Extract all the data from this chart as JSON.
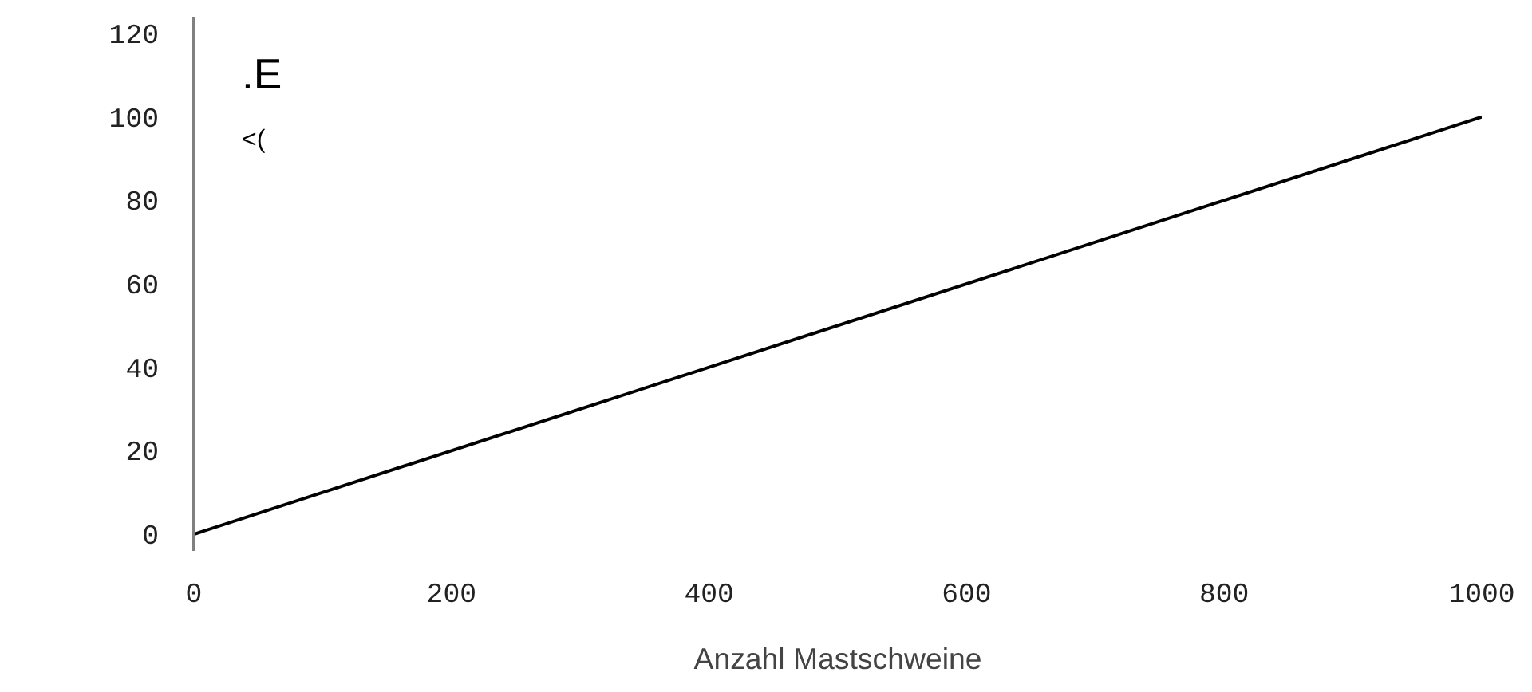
{
  "chart_data": {
    "type": "line",
    "xlabel": "Anzahl Mastschweine",
    "ylabel": ".E\n<(",
    "x": [
      0,
      1000
    ],
    "series": [
      {
        "color": "#000000",
        "values": [
          0,
          100
        ]
      }
    ],
    "xlim": [
      0,
      1000
    ],
    "xticks": [
      0,
      200,
      400,
      600,
      800,
      1000
    ],
    "ylim": [
      -4,
      124
    ],
    "yticks": [
      0,
      20,
      40,
      60,
      80,
      100,
      120
    ],
    "grid": false,
    "marker": "none",
    "line_style": "solid"
  }
}
